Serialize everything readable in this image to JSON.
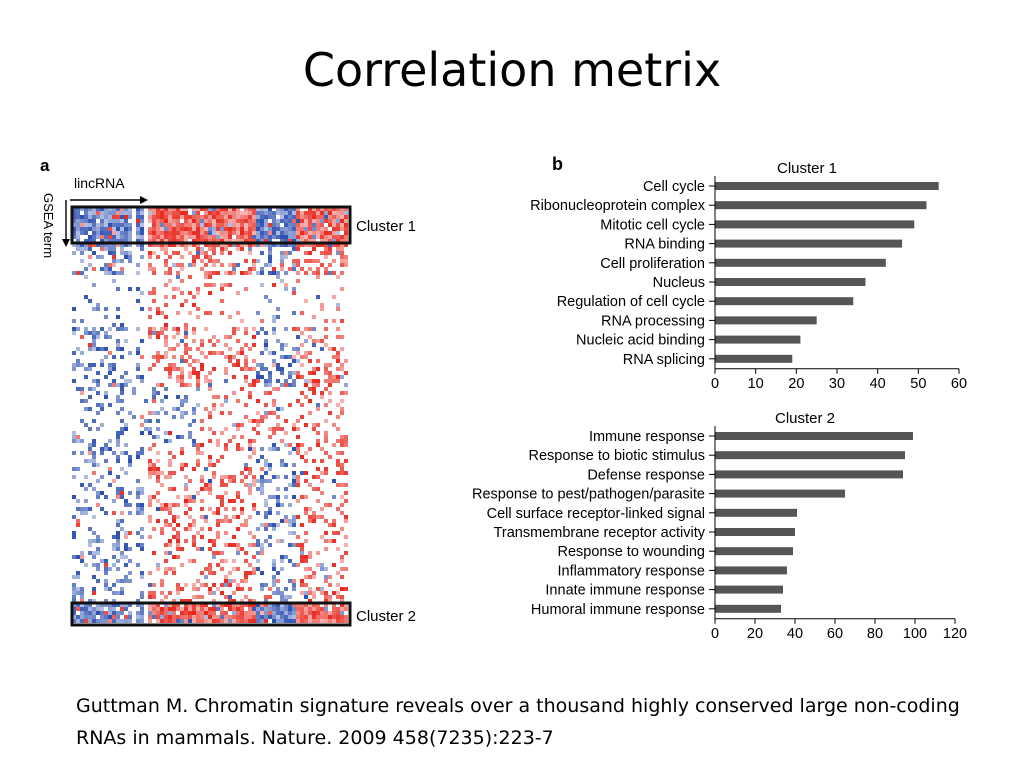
{
  "slide": {
    "title": "Correlation metrix",
    "citation": "Guttman M.  Chromatin signature reveals over a thousand highly conserved large non-coding RNAs in mammals. Nature. 2009 458(7235):223-7"
  },
  "heatmap": {
    "panel_label": "a",
    "x_axis_label": "lincRNA",
    "y_axis_label": "GSEA term",
    "cluster_labels": [
      "Cluster 1",
      "Cluster 2"
    ],
    "colors": {
      "positive": "#e8281e",
      "negative": "#2b4fb0",
      "neutral": "#ffffff"
    }
  },
  "chart_data": [
    {
      "type": "bar",
      "orientation": "horizontal",
      "panel_label": "b",
      "title": "Cluster 1",
      "categories": [
        "Cell cycle",
        "Ribonucleoprotein complex",
        "Mitotic cell cycle",
        "RNA binding",
        "Cell proliferation",
        "Nucleus",
        "Regulation of cell cycle",
        "RNA processing",
        "Nucleic acid binding",
        "RNA splicing"
      ],
      "values": [
        55,
        52,
        49,
        46,
        42,
        37,
        34,
        25,
        21,
        19
      ],
      "xlim": [
        0,
        60
      ],
      "xticks": [
        "0",
        "10",
        "20",
        "30",
        "40",
        "50",
        "60"
      ],
      "color": "#555555"
    },
    {
      "type": "bar",
      "orientation": "horizontal",
      "title": "Cluster 2",
      "categories": [
        "Immune response",
        "Response to biotic stimulus",
        "Defense response",
        "Response to pest/pathogen/parasite",
        "Cell surface receptor-linked signal",
        "Transmembrane receptor activity",
        "Response to wounding",
        "Inflammatory response",
        "Innate immune response",
        "Humoral immune response"
      ],
      "values": [
        99,
        95,
        94,
        65,
        41,
        40,
        39,
        36,
        34,
        33
      ],
      "xlim": [
        0,
        120
      ],
      "xticks": [
        "0",
        "20",
        "40",
        "60",
        "80",
        "100",
        "120"
      ],
      "color": "#555555"
    }
  ]
}
